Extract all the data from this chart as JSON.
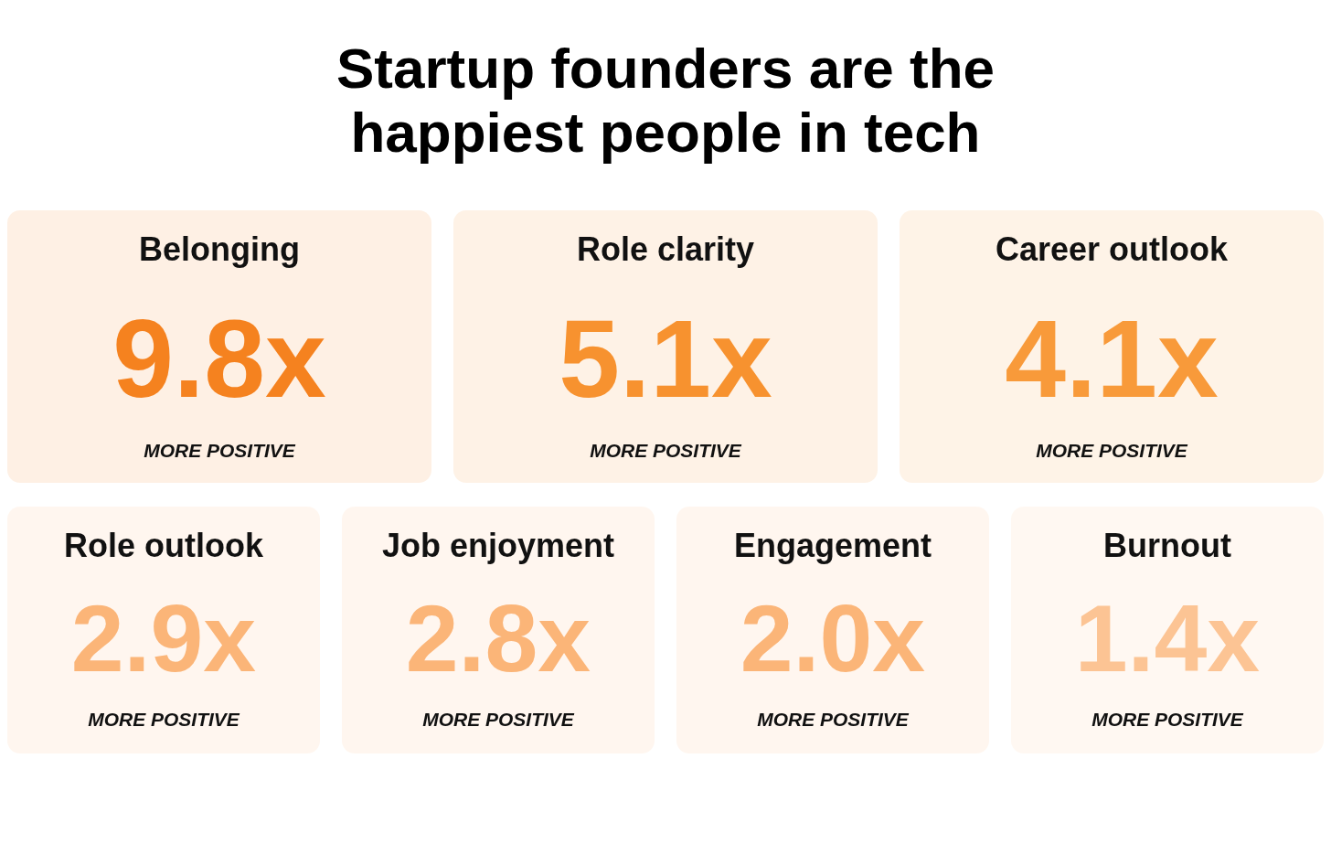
{
  "chart_data": {
    "type": "other",
    "title": "Startup founders are the happiest people in tech",
    "categories": [
      "Belonging",
      "Role clarity",
      "Career outlook",
      "Role outlook",
      "Job enjoyment",
      "Engagement",
      "Burnout"
    ],
    "values": [
      9.8,
      5.1,
      4.1,
      2.9,
      2.8,
      2.0,
      1.4
    ],
    "value_labels": [
      "9.8x",
      "5.1x",
      "4.1x",
      "2.9x",
      "2.8x",
      "2.0x",
      "1.4x"
    ],
    "colors": [
      "#f5821f",
      "#f7922f",
      "#f89a3a",
      "#fbb578",
      "#fbb578",
      "#fbb578",
      "#fcc494"
    ],
    "annotations": [
      "MORE POSITIVE",
      "MORE POSITIVE",
      "MORE POSITIVE",
      "MORE POSITIVE",
      "MORE POSITIVE",
      "MORE POSITIVE",
      "MORE POSITIVE"
    ]
  }
}
